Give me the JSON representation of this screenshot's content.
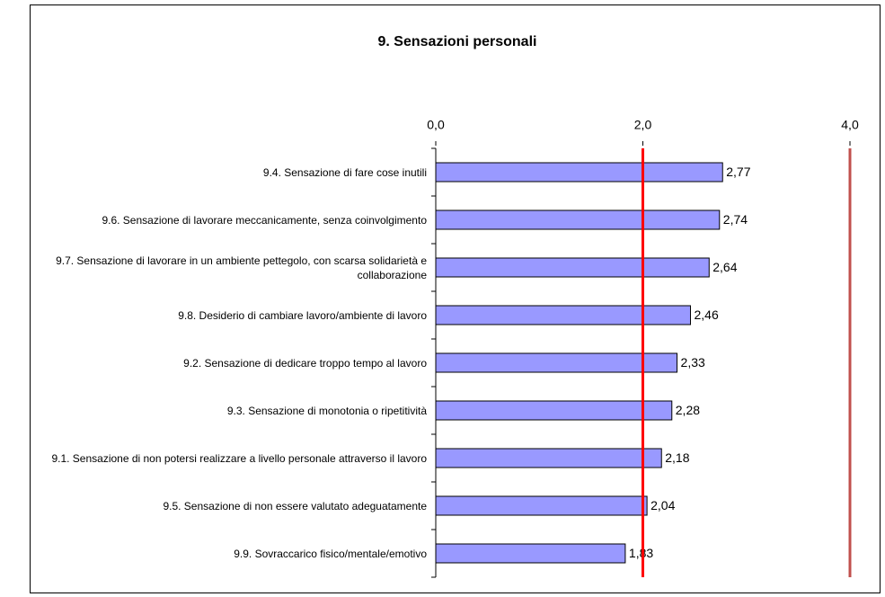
{
  "chart_data": {
    "type": "hbar",
    "title": "9. Sensazioni personali",
    "categories": [
      "9.4.   Sensazione di fare cose inutili",
      "9.6.   Sensazione di lavorare meccanicamente, senza coinvolgimento",
      "9.7.   Sensazione di lavorare in un ambiente pettegolo, con scarsa solidarietà e collaborazione",
      "9.8.   Desiderio di cambiare lavoro/ambiente di lavoro",
      "9.2.   Sensazione di dedicare troppo tempo al lavoro",
      "9.3.   Sensazione di monotonia o ripetitività",
      "9.1.   Sensazione di non potersi  realizzare a livello personale attraverso il lavoro",
      "9.5.   Sensazione di non essere valutato adeguatamente",
      "9.9.   Sovraccarico fisico/mentale/emotivo"
    ],
    "values": [
      2.77,
      2.74,
      2.64,
      2.46,
      2.33,
      2.28,
      2.18,
      2.04,
      1.83
    ],
    "value_labels": [
      "2,77",
      "2,74",
      "2,64",
      "2,46",
      "2,33",
      "2,28",
      "2,18",
      "2,04",
      "1,83"
    ],
    "color": "#9999ff",
    "xlim": [
      0,
      4
    ],
    "xticks": [
      {
        "value": 0,
        "label": "0,0"
      },
      {
        "value": 2,
        "label": "2,0"
      },
      {
        "value": 4,
        "label": "4,0"
      }
    ],
    "reference_lines": [
      {
        "value": 2,
        "color": "#ff0000"
      },
      {
        "value": 4,
        "color": "#c0504d"
      }
    ]
  }
}
